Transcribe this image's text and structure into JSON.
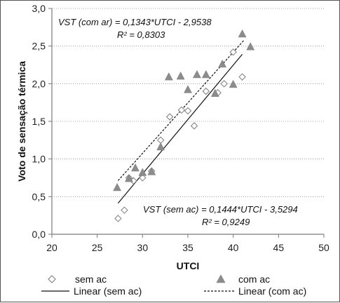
{
  "chart_data": {
    "type": "scatter",
    "xlabel": "UTCI",
    "ylabel": "Voto de sensação térmica",
    "xlim": [
      20,
      50
    ],
    "ylim": [
      0.0,
      3.0
    ],
    "x_ticks": [
      "20",
      "25",
      "30",
      "35",
      "40",
      "45",
      "50"
    ],
    "y_ticks": [
      "0,0",
      "0,5",
      "1,0",
      "1,5",
      "2,0",
      "2,5",
      "3,0"
    ],
    "grid": "horizontal dotted",
    "legend_position": "bottom",
    "series": [
      {
        "name": "sem ac",
        "marker": "open-diamond",
        "color": "#888888",
        "points": [
          [
            27.3,
            0.21
          ],
          [
            28.0,
            0.32
          ],
          [
            28.5,
            0.75
          ],
          [
            29.0,
            0.71
          ],
          [
            30.0,
            0.75
          ],
          [
            31.0,
            0.84
          ],
          [
            32.0,
            1.25
          ],
          [
            33.0,
            1.56
          ],
          [
            34.3,
            1.65
          ],
          [
            35.0,
            1.64
          ],
          [
            35.7,
            1.44
          ],
          [
            37.0,
            1.9
          ],
          [
            38.3,
            1.88
          ],
          [
            39.0,
            2.0
          ],
          [
            40.0,
            2.42
          ],
          [
            41.0,
            2.09
          ]
        ]
      },
      {
        "name": "com ac",
        "marker": "filled-triangle",
        "color": "#8c8c8c",
        "points": [
          [
            27.2,
            0.62
          ],
          [
            28.5,
            0.74
          ],
          [
            29.2,
            0.88
          ],
          [
            30.0,
            0.82
          ],
          [
            31.0,
            0.83
          ],
          [
            32.0,
            1.16
          ],
          [
            32.9,
            2.09
          ],
          [
            34.2,
            2.1
          ],
          [
            35.0,
            1.92
          ],
          [
            36.0,
            2.12
          ],
          [
            37.0,
            2.12
          ],
          [
            38.0,
            1.87
          ],
          [
            38.8,
            2.26
          ],
          [
            40.0,
            1.99
          ],
          [
            41.0,
            2.66
          ],
          [
            41.9,
            2.49
          ]
        ]
      }
    ],
    "trendlines": [
      {
        "name": "Linear (sem ac)",
        "style": "solid",
        "color": "#111111",
        "slope": 0.1444,
        "intercept": -3.5294,
        "x_range": [
          27.3,
          41.0
        ]
      },
      {
        "name": "Linear (com ac)",
        "style": "dashed",
        "color": "#111111",
        "slope": 0.1343,
        "intercept": -2.9538,
        "x_range": [
          27.3,
          41.2
        ]
      }
    ],
    "annotations": [
      {
        "line1": "VST (com ar) = 0,1343*UTCI - 2,9538",
        "line2": "R² = 0,8303"
      },
      {
        "line1": "VST (sem ac) = 0,1444*UTCI - 3,5294",
        "line2": "R² = 0,9249"
      }
    ]
  }
}
